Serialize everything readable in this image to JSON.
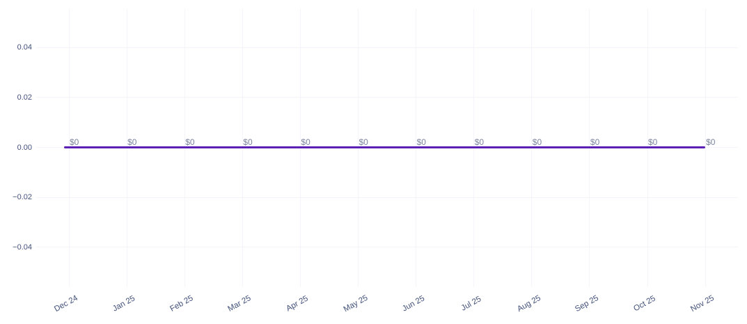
{
  "chart_data": {
    "type": "line",
    "title": "",
    "xlabel": "",
    "ylabel": "",
    "categories": [
      "Dec 24",
      "Jan 25",
      "Feb 25",
      "Mar 25",
      "Apr 25",
      "May 25",
      "Jun 25",
      "Jul 25",
      "Aug 25",
      "Sep 25",
      "Oct 25",
      "Nov 25"
    ],
    "series": [
      {
        "name": "value",
        "values": [
          0,
          0,
          0,
          0,
          0,
          0,
          0,
          0,
          0,
          0,
          0,
          0
        ],
        "point_labels": [
          "$0",
          "$0",
          "$0",
          "$0",
          "$0",
          "$0",
          "$0",
          "$0",
          "$0",
          "$0",
          "$0",
          "$0"
        ],
        "color": "#5b21b6"
      }
    ],
    "y_ticks": [
      {
        "value": 0.04,
        "label": "0.04"
      },
      {
        "value": 0.02,
        "label": "0.02"
      },
      {
        "value": 0,
        "label": "0.00"
      },
      {
        "value": -0.02,
        "label": "−0.02"
      },
      {
        "value": -0.04,
        "label": "−0.04"
      }
    ],
    "ylim": [
      -0.055,
      0.055
    ],
    "grid": true,
    "legend_position": "none",
    "colors": {
      "line": "#5b21b6",
      "gridline": "#f6f3fb",
      "axis_tick_text": "#42507a",
      "point_label_text": "#7b84a0",
      "background": "#ffffff"
    }
  }
}
